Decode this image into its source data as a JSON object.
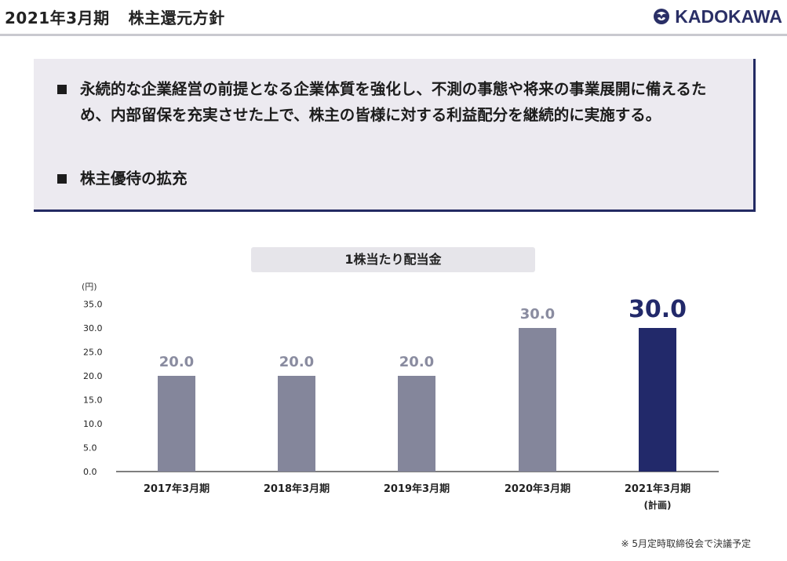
{
  "header": {
    "period": "2021年3月期",
    "title": "株主還元方針",
    "brand": "KADOKAWA",
    "logo_icon": "kadokawa-phoenix-logo"
  },
  "policy": {
    "items": [
      "永続的な企業経営の前提となる企業体質を強化し、不測の事態や将来の事業展開に備えるため、内部留保を充実させた上で、株主の皆様に対する利益配分を継続的に実施する。",
      "株主優待の拡充"
    ]
  },
  "chart_data": {
    "type": "bar",
    "title": "1株当たり配当金",
    "unit": "(円)",
    "categories": [
      "2017年3月期",
      "2018年3月期",
      "2019年3月期",
      "2020年3月期",
      "2021年3月期"
    ],
    "category_notes": [
      "",
      "",
      "",
      "",
      "(計画)"
    ],
    "values": [
      20.0,
      20.0,
      20.0,
      30.0,
      30.0
    ],
    "value_labels": [
      "20.0",
      "20.0",
      "20.0",
      "30.0",
      "30.0"
    ],
    "ylim": [
      0,
      35
    ],
    "yticks": [
      "0.0",
      "5.0",
      "10.0",
      "15.0",
      "20.0",
      "25.0",
      "30.0",
      "35.0"
    ],
    "colors": {
      "bar": "#84869b",
      "highlight_bar": "#22296a",
      "label": "#8a8ca0",
      "highlight_label": "#22296a"
    },
    "highlight_index": 4,
    "grid": false
  },
  "footnote": "※ 5月定時取締役会で決議予定"
}
